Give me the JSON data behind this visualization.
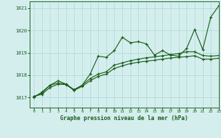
{
  "background_color": "#d4eeee",
  "grid_color": "#a8d8d0",
  "line_color": "#1a5c1a",
  "title": "Graphe pression niveau de la mer (hPa)",
  "xlim": [
    -0.5,
    23
  ],
  "ylim": [
    1016.55,
    1021.3
  ],
  "yticks": [
    1017,
    1018,
    1019,
    1020,
    1021
  ],
  "xticks": [
    0,
    1,
    2,
    3,
    4,
    5,
    6,
    7,
    8,
    9,
    10,
    11,
    12,
    13,
    14,
    15,
    16,
    17,
    18,
    19,
    20,
    21,
    22,
    23
  ],
  "series": [
    [
      1017.0,
      1017.25,
      1017.55,
      1017.75,
      1017.6,
      1017.35,
      1017.55,
      1018.05,
      1018.85,
      1018.8,
      1019.1,
      1019.7,
      1019.45,
      1019.5,
      1019.4,
      1018.9,
      1019.1,
      1018.9,
      1018.85,
      1019.2,
      1020.05,
      1019.15,
      1020.6,
      1021.1
    ],
    [
      1017.05,
      1017.2,
      1017.55,
      1017.65,
      1017.6,
      1017.35,
      1017.55,
      1017.85,
      1018.05,
      1018.15,
      1018.45,
      1018.55,
      1018.65,
      1018.72,
      1018.78,
      1018.82,
      1018.87,
      1018.92,
      1018.97,
      1019.05,
      1019.05,
      1018.88,
      1018.85,
      1018.88
    ],
    [
      1017.05,
      1017.15,
      1017.45,
      1017.6,
      1017.58,
      1017.32,
      1017.5,
      1017.75,
      1017.95,
      1018.05,
      1018.3,
      1018.42,
      1018.52,
      1018.58,
      1018.63,
      1018.67,
      1018.72,
      1018.77,
      1018.8,
      1018.83,
      1018.87,
      1018.72,
      1018.72,
      1018.76
    ]
  ]
}
